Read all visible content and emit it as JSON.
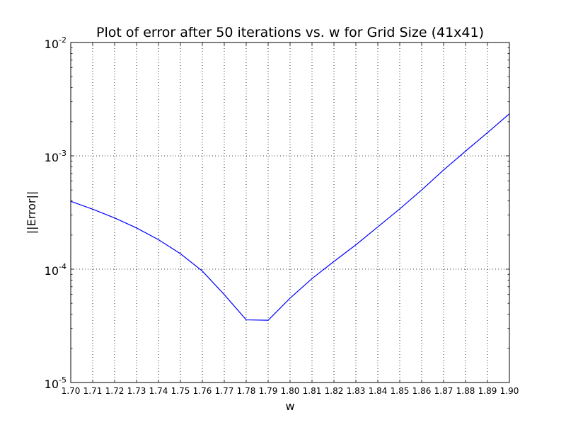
{
  "chart_data": {
    "type": "line",
    "title": "Plot of error after 50 iterations vs. w for Grid Size (41x41)",
    "xlabel": "w",
    "ylabel": "||Error||",
    "xlim": [
      1.7,
      1.9
    ],
    "ylim": [
      1e-05,
      0.01
    ],
    "yscale": "log",
    "grid": true,
    "xticks": [
      1.7,
      1.71,
      1.72,
      1.73,
      1.74,
      1.75,
      1.76,
      1.77,
      1.78,
      1.79,
      1.8,
      1.81,
      1.82,
      1.83,
      1.84,
      1.85,
      1.86,
      1.87,
      1.88,
      1.89,
      1.9
    ],
    "xtick_labels": [
      "1.70",
      "1.71",
      "1.72",
      "1.73",
      "1.74",
      "1.75",
      "1.76",
      "1.77",
      "1.78",
      "1.79",
      "1.80",
      "1.81",
      "1.82",
      "1.83",
      "1.84",
      "1.85",
      "1.86",
      "1.87",
      "1.88",
      "1.89",
      "1.90"
    ],
    "yticks": [
      {
        "value": 1e-05,
        "base": "10",
        "exp": "-5"
      },
      {
        "value": 0.0001,
        "base": "10",
        "exp": "-4"
      },
      {
        "value": 0.001,
        "base": "10",
        "exp": "-3"
      },
      {
        "value": 0.01,
        "base": "10",
        "exp": "-2"
      }
    ],
    "series": [
      {
        "color": "#0000ff",
        "x": [
          1.7,
          1.71,
          1.72,
          1.73,
          1.74,
          1.75,
          1.76,
          1.77,
          1.78,
          1.79,
          1.8,
          1.81,
          1.82,
          1.83,
          1.84,
          1.85,
          1.86,
          1.87,
          1.88,
          1.89,
          1.9
        ],
        "y": [
          0.000397,
          0.000338,
          0.000283,
          0.000231,
          0.000182,
          0.000137,
          9.62e-05,
          5.96e-05,
          3.57e-05,
          3.54e-05,
          5.55e-05,
          8.26e-05,
          0.000117,
          0.000164,
          0.000236,
          0.00034,
          0.0005,
          0.00075,
          0.0011,
          0.0016,
          0.00235
        ]
      }
    ]
  }
}
